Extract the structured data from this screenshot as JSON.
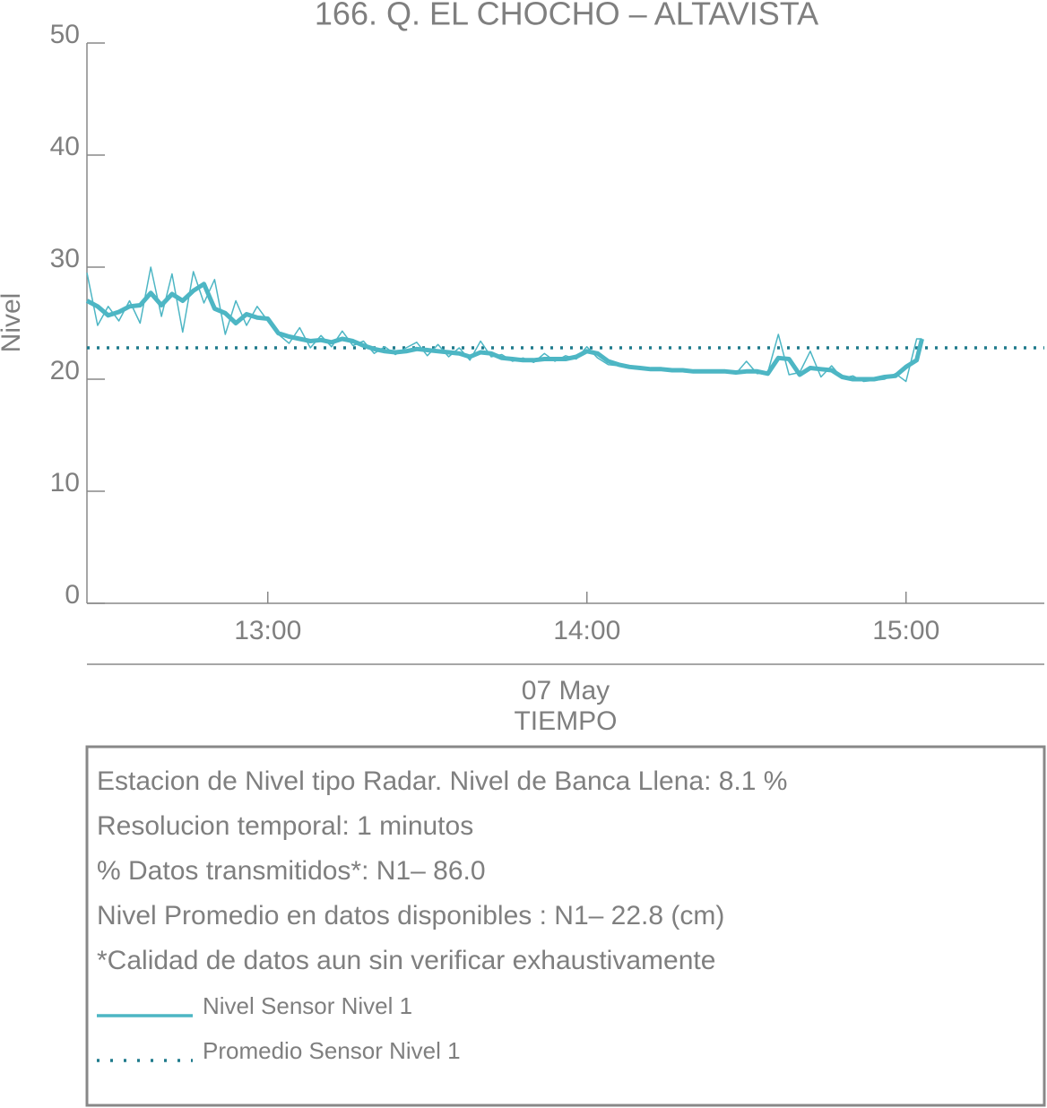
{
  "chart_data": {
    "type": "line",
    "title": "166. Q. EL CHOCHO – ALTAVISTA",
    "y_label": "Nivel",
    "x_label": "TIEMPO",
    "x_sublabel": "07 May",
    "xlim": [
      "12:26",
      "15:26"
    ],
    "xticks": [
      "13:00",
      "14:00",
      "15:00"
    ],
    "ylim": [
      0,
      50
    ],
    "yticks": [
      0,
      10,
      20,
      30,
      40,
      50
    ],
    "x": [
      "12:26",
      "12:28",
      "12:30",
      "12:32",
      "12:34",
      "12:36",
      "12:38",
      "12:40",
      "12:42",
      "12:44",
      "12:46",
      "12:48",
      "12:50",
      "12:52",
      "12:54",
      "12:56",
      "12:58",
      "13:00",
      "13:02",
      "13:04",
      "13:06",
      "13:08",
      "13:10",
      "13:12",
      "13:14",
      "13:16",
      "13:18",
      "13:20",
      "13:22",
      "13:24",
      "13:26",
      "13:28",
      "13:30",
      "13:32",
      "13:34",
      "13:36",
      "13:38",
      "13:40",
      "13:42",
      "13:44",
      "13:46",
      "13:48",
      "13:50",
      "13:52",
      "13:54",
      "13:56",
      "13:58",
      "14:00",
      "14:02",
      "14:04",
      "14:06",
      "14:08",
      "14:10",
      "14:12",
      "14:14",
      "14:16",
      "14:18",
      "14:20",
      "14:22",
      "14:24",
      "14:26",
      "14:28",
      "14:30",
      "14:32",
      "14:34",
      "14:36",
      "14:38",
      "14:40",
      "14:42",
      "14:44",
      "14:46",
      "14:48",
      "14:50",
      "14:52",
      "14:54",
      "14:56",
      "14:58",
      "15:00",
      "15:02",
      "15:03"
    ],
    "series": [
      {
        "color": "#4db6c4",
        "width": 1.5,
        "values": [
          29.5,
          24.8,
          26.5,
          25.2,
          27.0,
          25.0,
          30.0,
          25.6,
          29.4,
          24.2,
          29.6,
          26.8,
          28.9,
          24.0,
          27.0,
          24.8,
          26.5,
          25.2,
          24.0,
          23.2,
          24.6,
          22.8,
          23.9,
          22.9,
          24.3,
          23.0,
          23.4,
          22.3,
          22.9,
          22.2,
          22.8,
          23.3,
          22.1,
          23.1,
          22.0,
          22.8,
          21.7,
          23.4,
          22.0,
          22.2,
          21.6,
          21.9,
          21.5,
          22.3,
          21.6,
          22.1,
          21.8,
          22.9,
          21.9,
          21.3,
          21.2,
          21.0,
          21.0,
          20.8,
          20.9,
          20.8,
          20.7,
          20.7,
          20.6,
          20.7,
          20.7,
          20.5,
          21.6,
          20.5,
          20.6,
          24.0,
          20.4,
          20.6,
          22.5,
          20.2,
          21.2,
          20.1,
          20.3,
          19.8,
          19.9,
          20.0,
          20.5,
          19.8,
          23.6,
          23.6
        ]
      },
      {
        "name": "Nivel Sensor Nivel 1",
        "color": "#4db6c4",
        "width": 5,
        "values": [
          27.0,
          26.5,
          25.7,
          26.0,
          26.5,
          26.6,
          27.7,
          26.6,
          27.6,
          27.0,
          27.9,
          28.5,
          26.3,
          25.9,
          25.0,
          25.8,
          25.5,
          25.4,
          24.1,
          23.8,
          23.6,
          23.4,
          23.5,
          23.3,
          23.6,
          23.4,
          23.0,
          22.7,
          22.5,
          22.4,
          22.5,
          22.7,
          22.6,
          22.5,
          22.4,
          22.3,
          22.0,
          22.4,
          22.3,
          21.9,
          21.8,
          21.7,
          21.7,
          21.8,
          21.8,
          21.8,
          22.0,
          22.5,
          22.3,
          21.6,
          21.3,
          21.1,
          21.0,
          20.9,
          20.9,
          20.8,
          20.8,
          20.7,
          20.7,
          20.7,
          20.7,
          20.6,
          20.7,
          20.7,
          20.5,
          21.9,
          21.8,
          20.4,
          21.0,
          20.9,
          20.8,
          20.2,
          20.0,
          20.0,
          20.0,
          20.2,
          20.3,
          21.1,
          21.7,
          23.6
        ]
      }
    ],
    "average": {
      "name": "Promedio Sensor Nivel 1",
      "value": 22.8,
      "color": "#1f7a8c"
    },
    "info_lines": [
      "Estacion de Nivel tipo Radar. Nivel de Banca Llena:  8.1 %",
      "Resolucion temporal: 1 minutos",
      "% Datos transmitidos*: N1– 86.0",
      "Nivel Promedio en datos disponibles : N1– 22.8 (cm)",
      "*Calidad de datos aun sin verificar exhaustivamente"
    ]
  }
}
